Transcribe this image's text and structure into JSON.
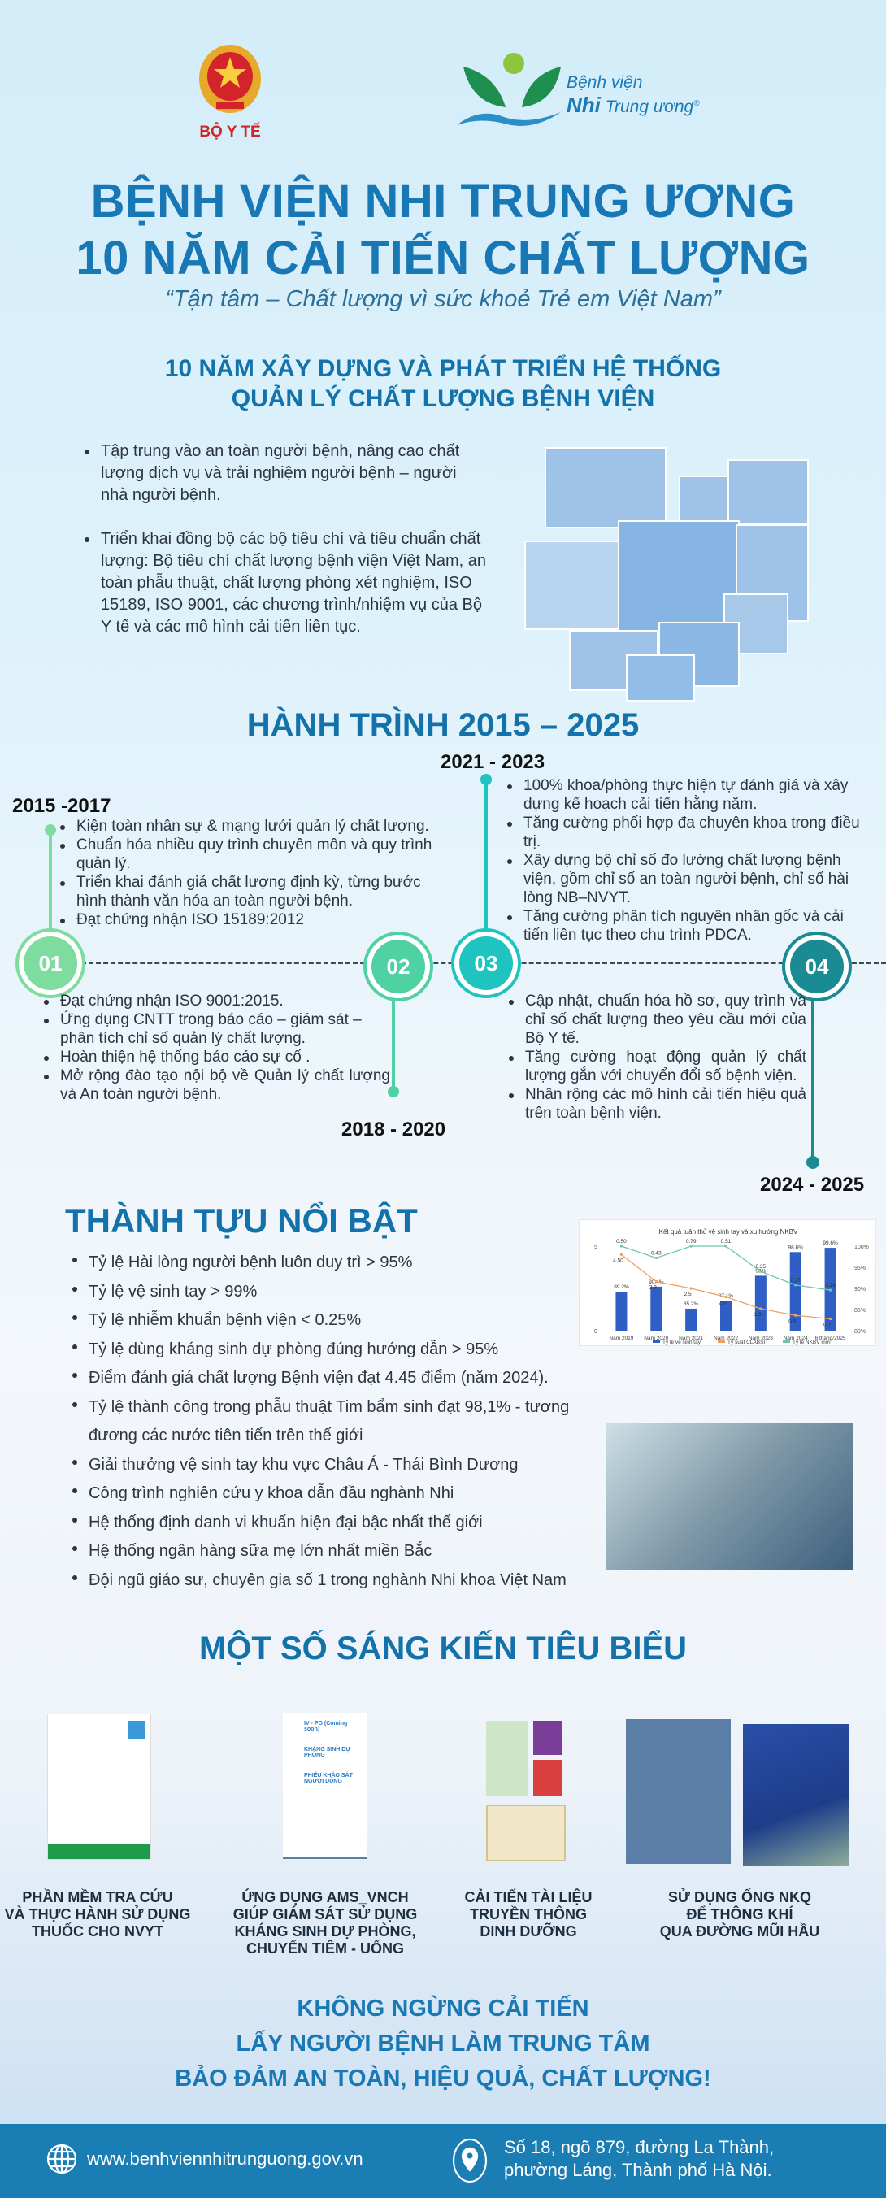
{
  "header": {
    "ministry_label": "BỘ Y TẾ",
    "hospital_logo_line1": "Bệnh viện",
    "hospital_logo_line2_bold": "Nhi",
    "hospital_logo_line2": "Trung ương",
    "title_line1": "BỆNH VIỆN NHI TRUNG ƯƠNG",
    "title_line2": "10 NĂM CẢI TIẾN CHẤT LƯỢNG",
    "slogan": "“Tận tâm – Chất lượng vì sức khoẻ Trẻ em Việt Nam”"
  },
  "intro": {
    "heading_line1": "10 NĂM XÂY DỰNG VÀ PHÁT TRIỂN HỆ THỐNG",
    "heading_line2": "QUẢN LÝ CHẤT LƯỢNG BỆNH VIỆN",
    "bullets": [
      "Tập trung vào an toàn người bệnh, nâng cao chất lượng dịch vụ và trải nghiệm người bệnh – người nhà người bệnh.",
      "Triển khai đồng bộ các bộ tiêu chí và tiêu chuẩn chất lượng: Bộ tiêu chí chất lượng bệnh viện Việt Nam, an toàn phẫu thuật, chất lượng phòng xét nghiệm, ISO 15189, ISO 9001, các chương trình/nhiệm vụ của Bộ Y tế và các mô hình cải tiến liên tục."
    ]
  },
  "journey": {
    "heading": "HÀNH TRÌNH 2015 – 2025",
    "phases": [
      {
        "num": "01",
        "period": "2015 -2017",
        "color": "#7fdc9f",
        "bullets": [
          "Kiện toàn nhân sự & mạng lưới quản lý chất lượng.",
          "Chuẩn hóa nhiều quy trình chuyên môn và quy trình quản lý.",
          "Triển khai đánh giá chất lượng định kỳ, từng bước hình thành văn hóa an toàn người bệnh.",
          "Đạt chứng nhận ISO 15189:2012"
        ]
      },
      {
        "num": "02",
        "period": "2018 - 2020",
        "color": "#4fd1a3",
        "bullets": [
          "Đạt chứng nhận ISO 9001:2015.",
          "Ứng dụng CNTT trong báo cáo – giám sát – phân tích chỉ số quản lý chất lượng.",
          "Hoàn thiện hệ thống báo cáo sự cố .",
          "Mở rộng đào tạo nội bộ về Quản lý chất lượng và An toàn người bệnh."
        ]
      },
      {
        "num": "03",
        "period": "2021 - 2023",
        "color": "#1fc3bf",
        "bullets": [
          "100% khoa/phòng thực hiện tự đánh giá và xây dựng kế hoạch cải tiến hằng năm.",
          "Tăng cường phối hợp đa chuyên khoa trong điều trị.",
          "Xây dựng bộ chỉ số đo lường chất lượng bệnh viện, gồm chỉ số an toàn người bệnh, chỉ số hài lòng NB–NVYT.",
          "Tăng cường phân tích nguyên nhân gốc và cải tiến liên tục theo chu trình PDCA."
        ]
      },
      {
        "num": "04",
        "period": "2024 -  2025",
        "color": "#1a8b93",
        "bullets": [
          "Cập nhật, chuẩn hóa hồ sơ, quy trình và chỉ số chất lượng theo yêu cầu mới của Bộ Y tế.",
          "Tăng cường hoạt động quản lý chất lượng gắn với chuyển đổi số bệnh viện.",
          "Nhân rộng các mô hình cải tiến hiệu quả trên toàn bệnh viện."
        ]
      }
    ]
  },
  "achievements": {
    "heading": "THÀNH TỰU NỔI BẬT",
    "items": [
      "Tỷ lệ Hài lòng người bệnh luôn duy trì > 95%",
      "Tỷ lệ vệ sinh tay > 99%",
      "Tỷ lệ nhiễm khuẩn bệnh viện < 0.25%",
      "Tỷ lệ dùng kháng sinh dự phòng đúng hướng dẫn > 95%",
      "Điểm đánh giá chất lượng Bệnh viện đạt 4.45 điểm (năm 2024).",
      "Tỷ lệ thành công trong phẫu thuật Tim bẩm sinh đạt 98,1% - tương đương các nước tiên tiến trên thế giới",
      "Giải thưởng vệ sinh tay khu vực Châu Á - Thái Bình Dương",
      "Công trình nghiên cứu y khoa dẫn đầu nghành Nhi",
      "Hệ thống định danh vi khuẩn hiện đại bậc nhất thế giới",
      "Hệ thống ngân hàng sữa mẹ lớn nhất miền Bắc",
      "Đội ngũ giáo sư, chuyên gia số 1 trong nghành Nhi khoa Việt Nam"
    ]
  },
  "chart_data": {
    "type": "bar",
    "title": "Kết quả tuân thủ vệ sinh tay và xu hướng NKBV",
    "categories": [
      "Năm 2019",
      "Năm 2020",
      "Năm 2021",
      "Năm 2022",
      "Năm 2023",
      "Năm 2024",
      "6 tháng/2025"
    ],
    "left_axis": {
      "ylim": [
        0,
        5
      ],
      "ticks": [
        "0",
        "5"
      ]
    },
    "right_axis": {
      "ylim": [
        80,
        100
      ],
      "ticks": [
        "80%",
        "85%",
        "90%",
        "95%",
        "100%"
      ]
    },
    "series": [
      {
        "name": "Tỷ lệ vệ sinh tay",
        "type": "bar",
        "axis": "right",
        "color": "#2f5fc4",
        "values": [
          89.2,
          90.4,
          85.2,
          87.1,
          93,
          98.6,
          99.6
        ],
        "labels": [
          "89.2%",
          "90.4%",
          "85.2%",
          "87.1%",
          "93%",
          "98.6%",
          "99.6%"
        ]
      },
      {
        "name": "Tỷ suất CLABSI",
        "type": "line",
        "axis": "left",
        "color": "#f0a060",
        "values": [
          4.5,
          2.9,
          2.5,
          2.0,
          1.3,
          0.9,
          0.7
        ],
        "labels": [
          "4.50",
          "2.9",
          "2.5",
          "2.0",
          "1.3",
          "0.9",
          "0.7"
        ]
      },
      {
        "name": "Tỷ lệ NKBV mới",
        "type": "line",
        "axis": "left",
        "color": "#6cc8a8",
        "values": [
          0.5,
          0.43,
          0.79,
          0.51,
          0.35,
          0.27,
          0.24
        ],
        "labels": [
          "0.50",
          "0.43",
          "0.79",
          "0.51",
          "0.35",
          "0.27",
          "0.24"
        ]
      }
    ],
    "legend": "bottom"
  },
  "initiatives": {
    "heading": "MỘT SỐ SÁNG KIẾN TIÊU BIỂU",
    "items": [
      {
        "caption": [
          "PHẦN MỀM TRA CỨU",
          "VÀ THỰC HÀNH SỬ DỤNG",
          "THUỐC CHO NVYT"
        ]
      },
      {
        "caption": [
          "ỨNG DỤNG AMS_VNCH",
          "GIÚP GIÁM SÁT SỬ DỤNG",
          "KHÁNG SINH DỰ PHÒNG,",
          "CHUYỂN TIÊM - UỐNG"
        ],
        "app_menu": [
          "IV - PO (Coming soon)",
          "KHÁNG SINH DỰ PHÒNG",
          "PHIẾU KHẢO SÁT NGƯỜI DÙNG"
        ]
      },
      {
        "caption": [
          "CẢI TIẾN TÀI LIỆU",
          "TRUYỀN THÔNG",
          "DINH DƯỠNG"
        ]
      },
      {
        "caption": [
          "SỬ DỤNG ỐNG NKQ",
          "ĐỂ THÔNG KHÍ",
          "QUA ĐƯỜNG MŨI HẦU"
        ]
      }
    ]
  },
  "closing": {
    "line1": "KHÔNG NGỪNG CẢI TIẾN",
    "line2": "LẤY NGƯỜI BỆNH LÀM TRUNG TÂM",
    "line3": "BẢO ĐẢM AN TOÀN, HIỆU QUẢ, CHẤT LƯỢNG!"
  },
  "footer": {
    "website": "www.benhviennhitrunguong.gov.vn",
    "address_line1": "Số 18, ngõ 879, đường La Thành,",
    "address_line2": "phường Láng, Thành phố Hà Nội.",
    "globe_icon": "globe-icon",
    "pin_icon": "location-pin-icon"
  }
}
